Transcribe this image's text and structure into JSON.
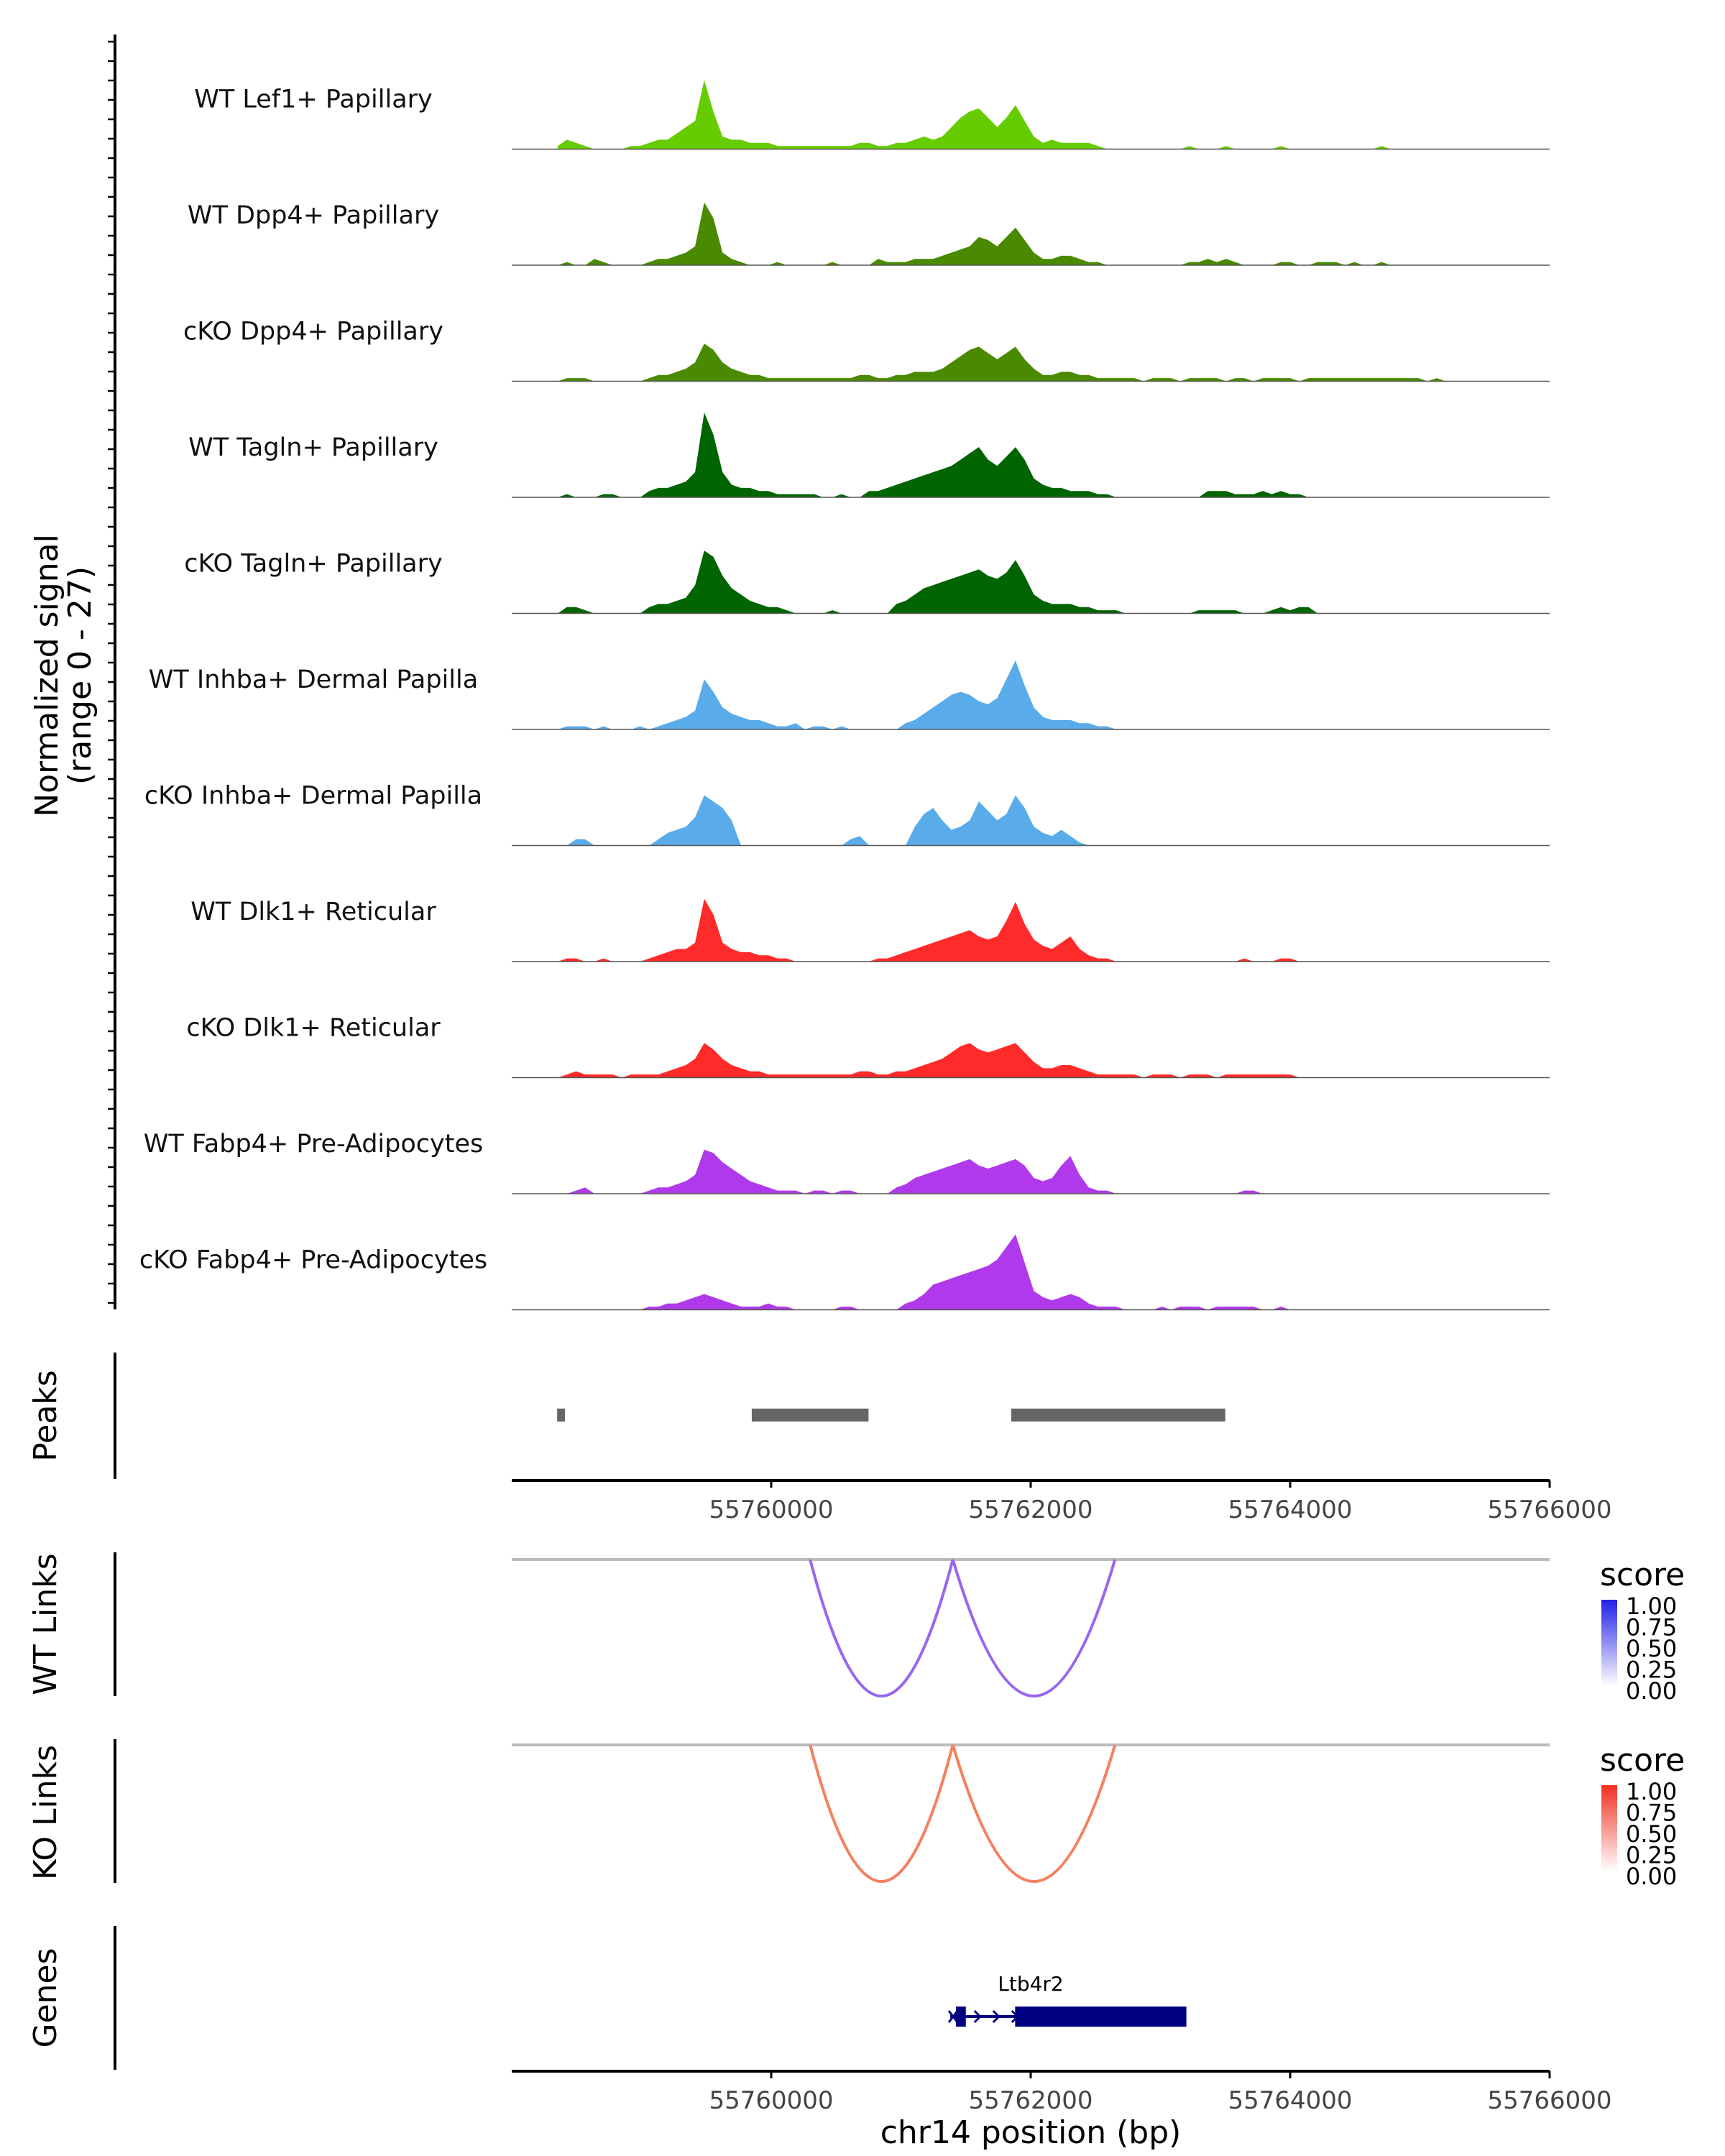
{
  "chart_data": {
    "type": "area",
    "title": "",
    "ylabel_line1": "Normalized signal",
    "ylabel_line2": "(range 0 - 27)",
    "ylim": [
      0,
      27
    ],
    "xlim": [
      55758000,
      55766000
    ],
    "xlabel": "chr14 position (bp)",
    "x_ticks": [
      55760000,
      55762000,
      55764000,
      55766000
    ],
    "x_tick_labels": [
      "55760000",
      "55762000",
      "55764000",
      "55766000"
    ],
    "tracks": [
      {
        "name": "WT Lef1+ Papillary",
        "color": "#66CC00",
        "values": [
          1,
          3,
          2,
          1,
          0,
          0,
          0,
          0,
          1,
          1,
          2,
          3,
          3,
          5,
          7,
          9,
          22,
          12,
          4,
          3,
          3,
          2,
          2,
          2,
          1,
          1,
          1,
          1,
          1,
          1,
          1,
          1,
          1,
          2,
          2,
          1,
          1,
          2,
          2,
          3,
          4,
          3,
          4,
          7,
          10,
          12,
          13,
          10,
          7,
          10,
          14,
          9,
          4,
          2,
          3,
          2,
          2,
          2,
          2,
          1,
          0,
          0,
          0,
          0,
          0,
          0,
          0,
          0,
          0,
          1,
          0,
          0,
          0,
          1,
          0,
          0,
          0,
          0,
          0,
          1,
          0,
          0,
          0,
          0,
          0,
          0,
          0,
          0,
          0,
          0,
          1,
          0,
          0,
          0,
          0,
          0,
          0,
          0,
          0,
          0,
          0,
          0,
          0,
          0
        ]
      },
      {
        "name": "WT Dpp4+ Papillary",
        "color": "#4A8A00",
        "values": [
          0,
          1,
          0,
          0,
          2,
          1,
          0,
          0,
          0,
          0,
          1,
          2,
          2,
          3,
          4,
          6,
          20,
          15,
          4,
          2,
          1,
          0,
          0,
          0,
          1,
          0,
          0,
          0,
          0,
          0,
          1,
          0,
          0,
          0,
          0,
          2,
          1,
          1,
          1,
          2,
          2,
          2,
          3,
          4,
          5,
          6,
          9,
          8,
          6,
          9,
          12,
          8,
          4,
          2,
          2,
          3,
          3,
          2,
          1,
          1,
          0,
          0,
          0,
          0,
          0,
          0,
          0,
          0,
          0,
          1,
          1,
          2,
          1,
          2,
          1,
          0,
          0,
          0,
          0,
          1,
          1,
          0,
          0,
          1,
          1,
          1,
          0,
          1,
          0,
          0,
          1,
          0,
          0,
          0,
          0,
          0,
          0,
          0,
          0,
          0,
          0,
          0,
          0,
          0
        ]
      },
      {
        "name": "cKO Dpp4+ Papillary",
        "color": "#4A8A00",
        "values": [
          0,
          1,
          1,
          1,
          0,
          0,
          0,
          0,
          0,
          0,
          1,
          2,
          2,
          3,
          4,
          6,
          12,
          10,
          6,
          4,
          3,
          2,
          2,
          1,
          1,
          1,
          1,
          1,
          1,
          1,
          1,
          1,
          1,
          2,
          2,
          1,
          1,
          2,
          2,
          3,
          3,
          3,
          4,
          6,
          8,
          10,
          11,
          9,
          7,
          9,
          11,
          7,
          4,
          2,
          2,
          3,
          3,
          2,
          2,
          1,
          1,
          1,
          1,
          1,
          0,
          1,
          1,
          1,
          0,
          1,
          1,
          1,
          1,
          0,
          1,
          1,
          0,
          1,
          1,
          1,
          1,
          0,
          1,
          1,
          1,
          1,
          1,
          1,
          1,
          1,
          1,
          1,
          1,
          1,
          1,
          0,
          1,
          0,
          0,
          0,
          0,
          0,
          0,
          0
        ]
      },
      {
        "name": "WT Tagln+ Papillary",
        "color": "#006400",
        "values": [
          0,
          1,
          0,
          0,
          0,
          1,
          1,
          0,
          0,
          0,
          2,
          3,
          3,
          4,
          5,
          8,
          27,
          20,
          8,
          4,
          3,
          3,
          2,
          2,
          1,
          1,
          1,
          1,
          1,
          0,
          0,
          1,
          0,
          0,
          2,
          2,
          3,
          4,
          5,
          6,
          7,
          8,
          9,
          10,
          12,
          14,
          16,
          12,
          10,
          13,
          16,
          12,
          6,
          4,
          3,
          3,
          2,
          2,
          2,
          1,
          1,
          0,
          0,
          0,
          0,
          0,
          0,
          0,
          0,
          0,
          0,
          2,
          2,
          2,
          1,
          1,
          1,
          2,
          1,
          2,
          1,
          1,
          0,
          0,
          0,
          0,
          0,
          0,
          0,
          0,
          0,
          0,
          0,
          0,
          0,
          0,
          0,
          0,
          0,
          0,
          0,
          0,
          0,
          0
        ]
      },
      {
        "name": "cKO Tagln+ Papillary",
        "color": "#006400",
        "values": [
          0,
          2,
          2,
          1,
          0,
          0,
          0,
          0,
          0,
          0,
          2,
          3,
          3,
          4,
          5,
          9,
          20,
          18,
          12,
          8,
          6,
          4,
          3,
          2,
          2,
          1,
          0,
          0,
          0,
          0,
          1,
          0,
          0,
          0,
          0,
          0,
          0,
          3,
          4,
          6,
          8,
          9,
          10,
          11,
          12,
          13,
          14,
          12,
          11,
          13,
          17,
          12,
          6,
          4,
          3,
          3,
          3,
          2,
          2,
          1,
          1,
          1,
          0,
          0,
          0,
          0,
          0,
          0,
          0,
          0,
          1,
          1,
          1,
          1,
          1,
          0,
          0,
          0,
          1,
          2,
          1,
          2,
          2,
          0,
          0,
          0,
          0,
          0,
          0,
          0,
          0,
          0,
          0,
          0,
          0,
          0,
          0,
          0,
          0,
          0,
          0,
          0,
          0,
          0
        ]
      },
      {
        "name": "WT Inhba+ Dermal Papilla",
        "color": "#5AABEA",
        "values": [
          0,
          1,
          1,
          1,
          0,
          1,
          0,
          0,
          0,
          1,
          0,
          1,
          2,
          3,
          4,
          6,
          16,
          12,
          7,
          5,
          4,
          3,
          3,
          2,
          1,
          1,
          2,
          0,
          1,
          1,
          0,
          1,
          0,
          0,
          0,
          0,
          0,
          0,
          2,
          3,
          5,
          7,
          9,
          11,
          12,
          11,
          9,
          8,
          10,
          16,
          22,
          14,
          7,
          4,
          3,
          3,
          3,
          2,
          2,
          1,
          1,
          0,
          0,
          0,
          0,
          0,
          0,
          0,
          0,
          0,
          0,
          0,
          0,
          0,
          0,
          0,
          0,
          0,
          0,
          0,
          0,
          0,
          0,
          0,
          0,
          0,
          0,
          0,
          0,
          0,
          0,
          0,
          0,
          0,
          0,
          0,
          0,
          0,
          0,
          0,
          0,
          0,
          0,
          0
        ]
      },
      {
        "name": "cKO Inhba+ Dermal Papilla",
        "color": "#5AABEA",
        "values": [
          0,
          0,
          2,
          2,
          0,
          0,
          0,
          0,
          0,
          0,
          0,
          2,
          4,
          5,
          6,
          9,
          16,
          14,
          12,
          8,
          0,
          0,
          0,
          0,
          0,
          0,
          0,
          0,
          0,
          0,
          0,
          0,
          2,
          3,
          0,
          0,
          0,
          0,
          0,
          6,
          10,
          12,
          8,
          5,
          6,
          8,
          14,
          11,
          8,
          10,
          16,
          12,
          6,
          4,
          3,
          5,
          3,
          1,
          0,
          0,
          0,
          0,
          0,
          0,
          0,
          0,
          0,
          0,
          0,
          0,
          0,
          0,
          0,
          0,
          0,
          0,
          0,
          0,
          0,
          0,
          0,
          0,
          0,
          0,
          0,
          0,
          0,
          0,
          0,
          0,
          0,
          0,
          0,
          0,
          0,
          0,
          0,
          0,
          0,
          0,
          0,
          0,
          0,
          0
        ]
      },
      {
        "name": "WT Dlk1+ Reticular",
        "color": "#FF2A2A",
        "values": [
          0,
          1,
          1,
          0,
          0,
          1,
          0,
          0,
          0,
          0,
          1,
          2,
          3,
          4,
          4,
          6,
          20,
          15,
          6,
          4,
          3,
          3,
          2,
          2,
          1,
          1,
          0,
          0,
          0,
          0,
          0,
          0,
          0,
          0,
          0,
          1,
          1,
          2,
          3,
          4,
          5,
          6,
          7,
          8,
          9,
          10,
          8,
          7,
          8,
          13,
          19,
          12,
          7,
          5,
          4,
          6,
          8,
          4,
          2,
          1,
          1,
          0,
          0,
          0,
          0,
          0,
          0,
          0,
          0,
          0,
          0,
          0,
          0,
          0,
          0,
          1,
          0,
          0,
          0,
          1,
          1,
          0,
          0,
          0,
          0,
          0,
          0,
          0,
          0,
          0,
          0,
          0,
          0,
          0,
          0,
          0,
          0,
          0,
          0,
          0,
          0,
          0,
          0,
          0
        ]
      },
      {
        "name": "cKO Dlk1+ Reticular",
        "color": "#FF2A2A",
        "values": [
          0,
          1,
          2,
          1,
          1,
          1,
          1,
          0,
          1,
          1,
          1,
          1,
          2,
          3,
          4,
          6,
          11,
          9,
          6,
          4,
          3,
          2,
          2,
          1,
          1,
          1,
          1,
          1,
          1,
          1,
          1,
          1,
          1,
          2,
          2,
          1,
          1,
          2,
          2,
          3,
          4,
          5,
          6,
          8,
          10,
          11,
          9,
          8,
          9,
          10,
          11,
          8,
          5,
          3,
          3,
          4,
          4,
          3,
          2,
          1,
          1,
          1,
          1,
          1,
          0,
          1,
          1,
          1,
          0,
          1,
          1,
          1,
          0,
          1,
          1,
          1,
          1,
          1,
          1,
          1,
          1,
          0,
          0,
          0,
          0,
          0,
          0,
          0,
          0,
          0,
          0,
          0,
          0,
          0,
          0,
          0,
          0,
          0,
          0,
          0,
          0,
          0,
          0,
          0
        ]
      },
      {
        "name": "WT Fabp4+ Pre-Adipocytes",
        "color": "#B03AEB",
        "values": [
          0,
          0,
          1,
          2,
          0,
          0,
          0,
          0,
          0,
          0,
          1,
          2,
          2,
          3,
          4,
          6,
          14,
          13,
          10,
          8,
          6,
          4,
          3,
          2,
          1,
          1,
          1,
          0,
          1,
          1,
          0,
          1,
          1,
          0,
          0,
          0,
          0,
          2,
          3,
          5,
          6,
          7,
          8,
          9,
          10,
          11,
          9,
          8,
          9,
          10,
          11,
          9,
          5,
          4,
          5,
          9,
          12,
          6,
          2,
          1,
          1,
          0,
          0,
          0,
          0,
          0,
          0,
          0,
          0,
          0,
          0,
          0,
          0,
          0,
          0,
          1,
          1,
          0,
          0,
          0,
          0,
          0,
          0,
          0,
          0,
          0,
          0,
          0,
          0,
          0,
          0,
          0,
          0,
          0,
          0,
          0,
          0,
          0,
          0,
          0,
          0,
          0,
          0,
          0
        ]
      },
      {
        "name": "cKO Fabp4+ Pre-Adipocytes",
        "color": "#B03AEB",
        "values": [
          0,
          0,
          0,
          0,
          0,
          0,
          0,
          0,
          0,
          0,
          1,
          1,
          2,
          2,
          3,
          4,
          5,
          4,
          3,
          2,
          1,
          1,
          1,
          2,
          1,
          1,
          0,
          0,
          0,
          0,
          0,
          1,
          1,
          0,
          0,
          0,
          0,
          0,
          2,
          3,
          5,
          8,
          9,
          10,
          11,
          12,
          13,
          14,
          16,
          20,
          24,
          15,
          6,
          4,
          3,
          4,
          5,
          4,
          2,
          1,
          1,
          1,
          0,
          0,
          0,
          0,
          1,
          0,
          1,
          1,
          1,
          0,
          1,
          1,
          1,
          1,
          1,
          0,
          0,
          1,
          0,
          0,
          0,
          0,
          0,
          0,
          0,
          0,
          0,
          0,
          0,
          0,
          0,
          0,
          0,
          0,
          0,
          0,
          0,
          0,
          0,
          0,
          0,
          0
        ]
      }
    ],
    "peaks": {
      "label": "Peaks",
      "ranges": [
        [
          55758350,
          55758410
        ],
        [
          55759850,
          55760750
        ],
        [
          55761850,
          55763500
        ]
      ]
    },
    "links": [
      {
        "label": "WT Links",
        "color": "#9966EE",
        "arcs": [
          [
            55760300,
            55761400
          ],
          [
            55761400,
            55762650
          ]
        ],
        "legend": {
          "title": "score",
          "color_high": "#2020E8",
          "color_low": "#FFFFFF",
          "labels": [
            "1.00",
            "0.75",
            "0.50",
            "0.25",
            "0.00"
          ]
        }
      },
      {
        "label": "KO Links",
        "color": "#F58060",
        "arcs": [
          [
            55760300,
            55761400
          ],
          [
            55761400,
            55762650
          ]
        ],
        "legend": {
          "title": "score",
          "color_high": "#F03020",
          "color_low": "#FFFFFF",
          "labels": [
            "1.00",
            "0.75",
            "0.50",
            "0.25",
            "0.00"
          ]
        }
      }
    ],
    "genes": {
      "label": "Genes",
      "name": "Ltb4r2",
      "color": "#000080",
      "start": 55761380,
      "end": 55763200,
      "thick_start": 55761880,
      "utr5_end": 55761500
    }
  }
}
